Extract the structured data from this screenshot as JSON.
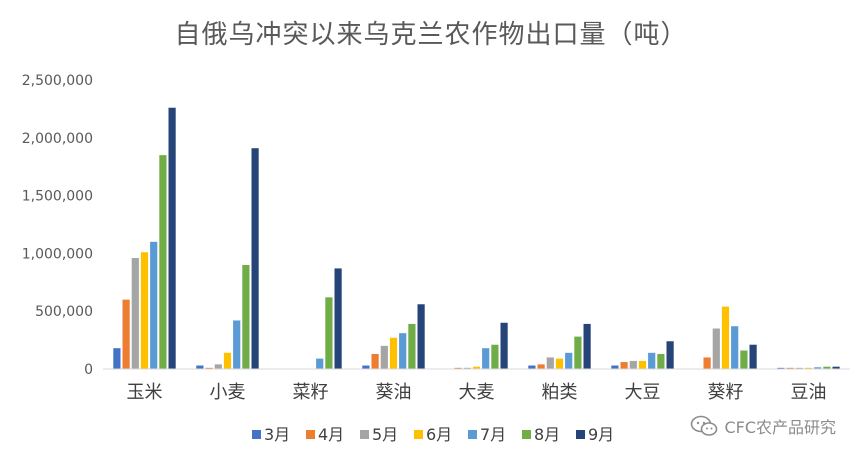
{
  "chart_data": {
    "type": "bar",
    "title": "自俄乌冲突以来乌克兰农作物出口量（吨）",
    "categories": [
      "玉米",
      "小麦",
      "菜籽",
      "葵油",
      "大麦",
      "粕类",
      "大豆",
      "葵籽",
      "豆油"
    ],
    "series": [
      {
        "name": "3月",
        "color": "#4472C4",
        "values": [
          180000,
          30000,
          0,
          30000,
          0,
          30000,
          30000,
          0,
          10000
        ]
      },
      {
        "name": "4月",
        "color": "#ED7D31",
        "values": [
          600000,
          10000,
          0,
          130000,
          10000,
          40000,
          60000,
          100000,
          10000
        ]
      },
      {
        "name": "5月",
        "color": "#A5A5A5",
        "values": [
          960000,
          40000,
          0,
          200000,
          10000,
          100000,
          70000,
          350000,
          10000
        ]
      },
      {
        "name": "6月",
        "color": "#FFC000",
        "values": [
          1010000,
          140000,
          0,
          270000,
          20000,
          90000,
          70000,
          540000,
          10000
        ]
      },
      {
        "name": "7月",
        "color": "#5B9BD5",
        "values": [
          1100000,
          420000,
          90000,
          310000,
          180000,
          140000,
          140000,
          370000,
          15000
        ]
      },
      {
        "name": "8月",
        "color": "#70AD47",
        "values": [
          1850000,
          900000,
          620000,
          390000,
          210000,
          280000,
          130000,
          160000,
          20000
        ]
      },
      {
        "name": "9月",
        "color": "#264478",
        "values": [
          2260000,
          1910000,
          870000,
          560000,
          400000,
          390000,
          240000,
          210000,
          20000
        ]
      }
    ],
    "ylim": [
      0,
      2500000
    ],
    "yticks": [
      0,
      500000,
      1000000,
      1500000,
      2000000,
      2500000
    ],
    "ytick_labels": [
      "0",
      "500,000",
      "1,000,000",
      "1,500,000",
      "2,000,000",
      "2,500,000"
    ],
    "grid": false,
    "legend_position": "bottom"
  },
  "watermark": {
    "text": "CFC农产品研究",
    "icon": "wechat-icon"
  }
}
